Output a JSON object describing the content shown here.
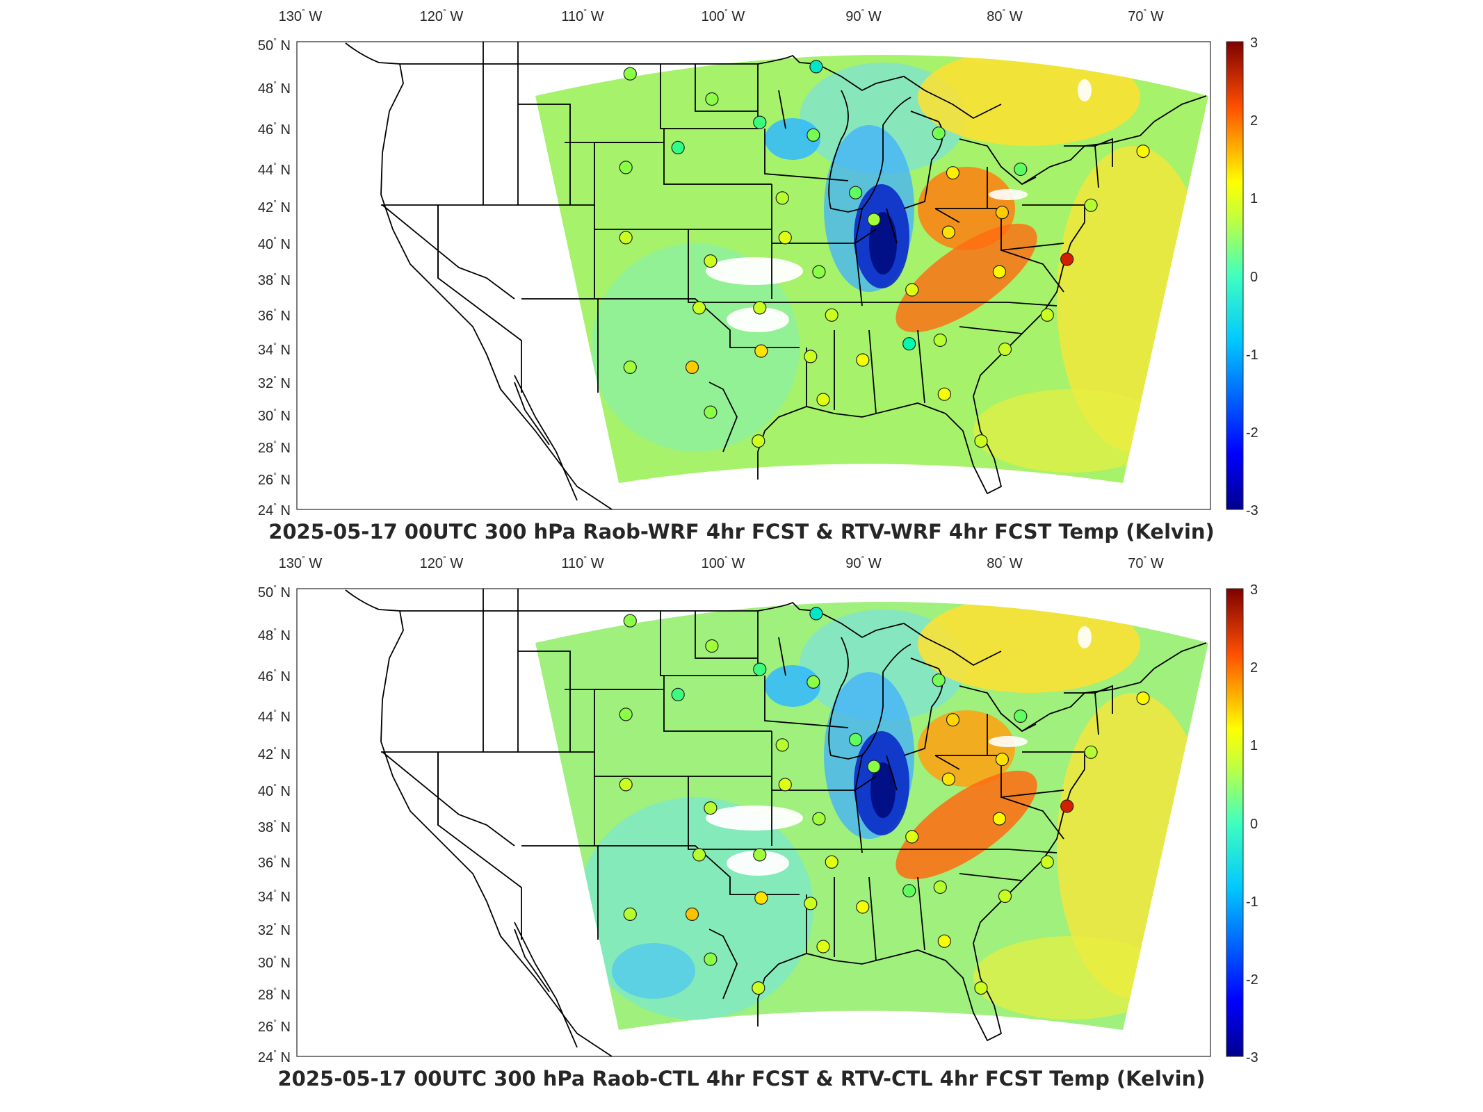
{
  "map": {
    "lon_ticks": [
      {
        "deg": "130",
        "hemi": "W"
      },
      {
        "deg": "120",
        "hemi": "W"
      },
      {
        "deg": "110",
        "hemi": "W"
      },
      {
        "deg": "100",
        "hemi": "W"
      },
      {
        "deg": "90",
        "hemi": "W"
      },
      {
        "deg": "80",
        "hemi": "W"
      },
      {
        "deg": "70",
        "hemi": "W"
      }
    ],
    "lat_ticks": [
      {
        "deg": "50",
        "hemi": "N"
      },
      {
        "deg": "48",
        "hemi": "N"
      },
      {
        "deg": "46",
        "hemi": "N"
      },
      {
        "deg": "44",
        "hemi": "N"
      },
      {
        "deg": "42",
        "hemi": "N"
      },
      {
        "deg": "40",
        "hemi": "N"
      },
      {
        "deg": "38",
        "hemi": "N"
      },
      {
        "deg": "36",
        "hemi": "N"
      },
      {
        "deg": "34",
        "hemi": "N"
      },
      {
        "deg": "32",
        "hemi": "N"
      },
      {
        "deg": "30",
        "hemi": "N"
      },
      {
        "deg": "28",
        "hemi": "N"
      },
      {
        "deg": "26",
        "hemi": "N"
      },
      {
        "deg": "24",
        "hemi": "N"
      }
    ],
    "colorbar": {
      "ticks": [
        "3",
        "2",
        "1",
        "0",
        "-1",
        "-2",
        "-3"
      ],
      "range": [
        -3,
        3
      ],
      "colormap": "jet",
      "colors": [
        "#00008f",
        "#0000ff",
        "#00b4ff",
        "#00ffaa",
        "#60ff60",
        "#ffff00",
        "#ffaa00",
        "#ff3000",
        "#7f0000"
      ]
    },
    "panels": [
      {
        "title": "2025-05-17 00UTC 300 hPa Raob-WRF 4hr FCST & RTV-WRF 4hr FCST Temp (Kelvin)",
        "stations": [
          {
            "lon": -106.6,
            "lat": 48.2,
            "value": 0.2
          },
          {
            "lon": -93.4,
            "lat": 48.6,
            "value": -1.0
          },
          {
            "lon": -100.8,
            "lat": 46.8,
            "value": 0.2
          },
          {
            "lon": -97.4,
            "lat": 45.5,
            "value": -0.3
          },
          {
            "lon": -93.6,
            "lat": 44.8,
            "value": 0.1
          },
          {
            "lon": -103.2,
            "lat": 44.1,
            "value": -0.4
          },
          {
            "lon": -106.9,
            "lat": 43.0,
            "value": 0.2
          },
          {
            "lon": -95.8,
            "lat": 41.3,
            "value": 0.4
          },
          {
            "lon": -90.6,
            "lat": 41.6,
            "value": 0.0
          },
          {
            "lon": -89.3,
            "lat": 40.1,
            "value": 0.3
          },
          {
            "lon": -106.9,
            "lat": 39.1,
            "value": 0.5
          },
          {
            "lon": -95.6,
            "lat": 39.1,
            "value": 0.6
          },
          {
            "lon": -100.9,
            "lat": 37.8,
            "value": 0.5
          },
          {
            "lon": -93.2,
            "lat": 37.2,
            "value": 0.2
          },
          {
            "lon": -86.6,
            "lat": 36.2,
            "value": 0.6
          },
          {
            "lon": -83.7,
            "lat": 42.7,
            "value": 0.9
          },
          {
            "lon": -84.7,
            "lat": 44.9,
            "value": 0.1
          },
          {
            "lon": -78.9,
            "lat": 42.9,
            "value": 0.0
          },
          {
            "lon": -84.0,
            "lat": 39.4,
            "value": 1.0
          },
          {
            "lon": -80.2,
            "lat": 40.5,
            "value": 1.2
          },
          {
            "lon": -80.4,
            "lat": 37.2,
            "value": 0.8
          },
          {
            "lon": -73.9,
            "lat": 40.9,
            "value": 0.4
          },
          {
            "lon": -70.2,
            "lat": 43.9,
            "value": 0.8
          },
          {
            "lon": -75.6,
            "lat": 37.9,
            "value": 2.5
          },
          {
            "lon": -77.0,
            "lat": 34.8,
            "value": 0.5
          },
          {
            "lon": -80.0,
            "lat": 32.9,
            "value": 0.5
          },
          {
            "lon": -84.6,
            "lat": 33.4,
            "value": 0.4
          },
          {
            "lon": -86.8,
            "lat": 33.2,
            "value": -0.8
          },
          {
            "lon": -90.1,
            "lat": 32.3,
            "value": 0.7
          },
          {
            "lon": -92.3,
            "lat": 34.8,
            "value": 0.5
          },
          {
            "lon": -93.8,
            "lat": 32.5,
            "value": 0.5
          },
          {
            "lon": -97.4,
            "lat": 35.2,
            "value": 0.5
          },
          {
            "lon": -101.7,
            "lat": 35.2,
            "value": 0.5
          },
          {
            "lon": -97.3,
            "lat": 32.8,
            "value": 1.0
          },
          {
            "lon": -102.2,
            "lat": 31.9,
            "value": 1.2
          },
          {
            "lon": -106.6,
            "lat": 31.9,
            "value": 0.3
          },
          {
            "lon": -100.9,
            "lat": 29.4,
            "value": 0.2
          },
          {
            "lon": -97.5,
            "lat": 27.8,
            "value": 0.5
          },
          {
            "lon": -92.9,
            "lat": 30.1,
            "value": 0.6
          },
          {
            "lon": -84.3,
            "lat": 30.4,
            "value": 0.7
          },
          {
            "lon": -81.7,
            "lat": 27.8,
            "value": 0.5
          }
        ]
      },
      {
        "title": "2025-05-17 00UTC 300 hPa Raob-CTL 4hr FCST & RTV-CTL 4hr FCST Temp (Kelvin)",
        "stations": [
          {
            "lon": -106.6,
            "lat": 48.2,
            "value": 0.2
          },
          {
            "lon": -93.4,
            "lat": 48.6,
            "value": -1.0
          },
          {
            "lon": -100.8,
            "lat": 46.8,
            "value": 0.3
          },
          {
            "lon": -97.4,
            "lat": 45.5,
            "value": -0.3
          },
          {
            "lon": -93.6,
            "lat": 44.8,
            "value": 0.2
          },
          {
            "lon": -103.2,
            "lat": 44.1,
            "value": -0.3
          },
          {
            "lon": -106.9,
            "lat": 43.0,
            "value": 0.2
          },
          {
            "lon": -95.8,
            "lat": 41.3,
            "value": 0.4
          },
          {
            "lon": -90.6,
            "lat": 41.6,
            "value": 0.0
          },
          {
            "lon": -89.3,
            "lat": 40.1,
            "value": 0.2
          },
          {
            "lon": -106.9,
            "lat": 39.1,
            "value": 0.5
          },
          {
            "lon": -95.6,
            "lat": 39.1,
            "value": 0.6
          },
          {
            "lon": -100.9,
            "lat": 37.8,
            "value": 0.4
          },
          {
            "lon": -93.2,
            "lat": 37.2,
            "value": 0.3
          },
          {
            "lon": -86.6,
            "lat": 36.2,
            "value": 0.6
          },
          {
            "lon": -83.7,
            "lat": 42.7,
            "value": 1.1
          },
          {
            "lon": -84.7,
            "lat": 44.9,
            "value": 0.1
          },
          {
            "lon": -78.9,
            "lat": 42.9,
            "value": 0.0
          },
          {
            "lon": -84.0,
            "lat": 39.4,
            "value": 1.0
          },
          {
            "lon": -80.2,
            "lat": 40.5,
            "value": 1.0
          },
          {
            "lon": -80.4,
            "lat": 37.2,
            "value": 0.8
          },
          {
            "lon": -73.9,
            "lat": 40.9,
            "value": 0.4
          },
          {
            "lon": -70.2,
            "lat": 43.9,
            "value": 0.8
          },
          {
            "lon": -75.6,
            "lat": 37.9,
            "value": 2.5
          },
          {
            "lon": -77.0,
            "lat": 34.8,
            "value": 0.5
          },
          {
            "lon": -80.0,
            "lat": 32.9,
            "value": 0.5
          },
          {
            "lon": -84.6,
            "lat": 33.4,
            "value": 0.4
          },
          {
            "lon": -86.8,
            "lat": 33.2,
            "value": 0.0
          },
          {
            "lon": -90.1,
            "lat": 32.3,
            "value": 0.7
          },
          {
            "lon": -92.3,
            "lat": 34.8,
            "value": 0.6
          },
          {
            "lon": -93.8,
            "lat": 32.5,
            "value": 0.5
          },
          {
            "lon": -97.4,
            "lat": 35.2,
            "value": 0.3
          },
          {
            "lon": -101.7,
            "lat": 35.2,
            "value": 0.4
          },
          {
            "lon": -97.3,
            "lat": 32.8,
            "value": 1.0
          },
          {
            "lon": -102.2,
            "lat": 31.9,
            "value": 1.3
          },
          {
            "lon": -106.6,
            "lat": 31.9,
            "value": 0.4
          },
          {
            "lon": -100.9,
            "lat": 29.4,
            "value": 0.2
          },
          {
            "lon": -97.5,
            "lat": 27.8,
            "value": 0.5
          },
          {
            "lon": -92.9,
            "lat": 30.1,
            "value": 0.6
          },
          {
            "lon": -84.3,
            "lat": 30.4,
            "value": 0.7
          },
          {
            "lon": -81.7,
            "lat": 27.8,
            "value": 0.5
          }
        ]
      }
    ]
  }
}
